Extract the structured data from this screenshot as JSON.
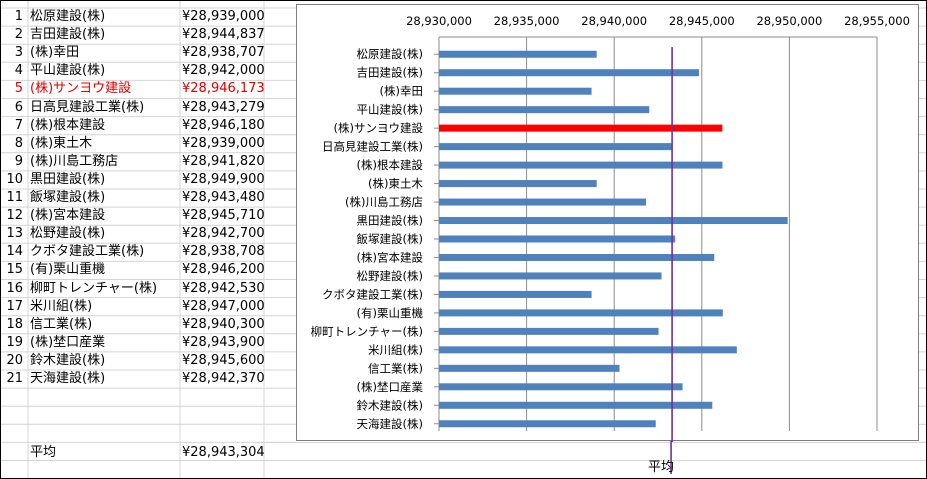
{
  "table": {
    "rows": [
      {
        "no": "1",
        "name": "松原建設(株)",
        "value": "¥28,939,000"
      },
      {
        "no": "2",
        "name": "吉田建設(株)",
        "value": "¥28,944,837"
      },
      {
        "no": "3",
        "name": "(株)幸田",
        "value": "¥28,938,707"
      },
      {
        "no": "4",
        "name": "平山建設(株)",
        "value": "¥28,942,000"
      },
      {
        "no": "5",
        "name": "(株)サンヨウ建設",
        "value": "¥28,946,173"
      },
      {
        "no": "6",
        "name": "日高見建設工業(株)",
        "value": "¥28,943,279"
      },
      {
        "no": "7",
        "name": "(株)根本建設",
        "value": "¥28,946,180"
      },
      {
        "no": "8",
        "name": "(株)東土木",
        "value": "¥28,939,000"
      },
      {
        "no": "9",
        "name": "(株)川島工務店",
        "value": "¥28,941,820"
      },
      {
        "no": "10",
        "name": "黒田建設(株)",
        "value": "¥28,949,900"
      },
      {
        "no": "11",
        "name": "飯塚建設(株)",
        "value": "¥28,943,480"
      },
      {
        "no": "12",
        "name": "(株)宮本建設",
        "value": "¥28,945,710"
      },
      {
        "no": "13",
        "name": "松野建設(株)",
        "value": "¥28,942,700"
      },
      {
        "no": "14",
        "name": "クボタ建設工業(株)",
        "value": "¥28,938,708"
      },
      {
        "no": "15",
        "name": "(有)栗山重機",
        "value": "¥28,946,200"
      },
      {
        "no": "16",
        "name": "柳町トレンチャー(株)",
        "value": "¥28,942,530"
      },
      {
        "no": "17",
        "name": "米川組(株)",
        "value": "¥28,947,000"
      },
      {
        "no": "18",
        "name": "信工業(株)",
        "value": "¥28,940,300"
      },
      {
        "no": "19",
        "name": "(株)埜口産業",
        "value": "¥28,943,900"
      },
      {
        "no": "20",
        "name": "鈴木建設(株)",
        "value": "¥28,945,600"
      },
      {
        "no": "21",
        "name": "天海建設(株)",
        "value": "¥28,942,370"
      }
    ],
    "average_label": "平均",
    "average_value": "¥28,943,304",
    "highlight_color": "#e00000"
  },
  "chart_data": {
    "type": "bar",
    "orientation": "horizontal",
    "categories": [
      "松原建設(株)",
      "吉田建設(株)",
      "(株)幸田",
      "平山建設(株)",
      "(株)サンヨウ建設",
      "日高見建設工業(株)",
      "(株)根本建設",
      "(株)東土木",
      "(株)川島工務店",
      "黒田建設(株)",
      "飯塚建設(株)",
      "(株)宮本建設",
      "松野建設(株)",
      "クボタ建設工業(株)",
      "(有)栗山重機",
      "柳町トレンチャー(株)",
      "米川組(株)",
      "信工業(株)",
      "(株)埜口産業",
      "鈴木建設(株)",
      "天海建設(株)"
    ],
    "values": [
      28939000,
      28944837,
      28938707,
      28942000,
      28946173,
      28943279,
      28946180,
      28939000,
      28941820,
      28949900,
      28943480,
      28945710,
      28942700,
      28938708,
      28946200,
      28942530,
      28947000,
      28940300,
      28943900,
      28945600,
      28942370
    ],
    "xlim": [
      28930000,
      28955000
    ],
    "x_ticks": [
      28930000,
      28935000,
      28940000,
      28945000,
      28950000,
      28955000
    ],
    "x_tick_labels": [
      "28,930,000",
      "28,935,000",
      "28,940,000",
      "28,945,000",
      "28,950,000",
      "28,955,000"
    ],
    "x_axis_position": "top",
    "grid": true,
    "average": 28943304,
    "average_label": "平均",
    "highlight_index": 4,
    "bar_color": "#4f81bd",
    "highlight_color": "#ff0000",
    "average_line_color": "#7030a0"
  }
}
